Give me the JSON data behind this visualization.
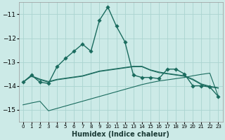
{
  "xlabel": "Humidex (Indice chaleur)",
  "ylabel": "",
  "xlim": [
    -0.5,
    23.5
  ],
  "ylim": [
    -15.5,
    -10.5
  ],
  "yticks": [
    -15,
    -14,
    -13,
    -12,
    -11
  ],
  "xticks": [
    0,
    1,
    2,
    3,
    4,
    5,
    6,
    7,
    8,
    9,
    10,
    11,
    12,
    13,
    14,
    15,
    16,
    17,
    18,
    19,
    20,
    21,
    22,
    23
  ],
  "background_color": "#cceae7",
  "grid_color": "#aad4d0",
  "line_color": "#1a6b5e",
  "figsize": [
    3.2,
    2.0
  ],
  "dpi": 100,
  "lines": [
    {
      "x": [
        0,
        1,
        2,
        3,
        4,
        5,
        6,
        7,
        8,
        9,
        10,
        11,
        12,
        13,
        14,
        15,
        16,
        17,
        18,
        19,
        20,
        21,
        22,
        23
      ],
      "y": [
        -13.85,
        -13.6,
        -13.75,
        -13.85,
        -13.75,
        -13.7,
        -13.65,
        -13.6,
        -13.5,
        -13.4,
        -13.35,
        -13.3,
        -13.25,
        -13.2,
        -13.2,
        -13.35,
        -13.45,
        -13.5,
        -13.55,
        -13.6,
        -13.75,
        -13.95,
        -14.05,
        -14.1
      ],
      "has_markers": false,
      "lw": 0.8
    },
    {
      "x": [
        0,
        1,
        2,
        3,
        4,
        5,
        6,
        7,
        8,
        9,
        10,
        11,
        12,
        13,
        14,
        15,
        16,
        17,
        18,
        19,
        20,
        21,
        22,
        23
      ],
      "y": [
        -14.8,
        -14.72,
        -14.65,
        -15.05,
        -14.95,
        -14.85,
        -14.75,
        -14.65,
        -14.55,
        -14.45,
        -14.35,
        -14.25,
        -14.15,
        -14.05,
        -13.95,
        -13.87,
        -13.8,
        -13.75,
        -13.7,
        -13.65,
        -13.58,
        -13.52,
        -13.47,
        -14.45
      ],
      "has_markers": false,
      "lw": 0.8
    },
    {
      "x": [
        0,
        1,
        2,
        3,
        4,
        5,
        6,
        7,
        8,
        9,
        10,
        11,
        12,
        13,
        14,
        15,
        16,
        17,
        18,
        19,
        20,
        21,
        22,
        23
      ],
      "y": [
        -13.85,
        -13.58,
        -13.72,
        -13.82,
        -13.73,
        -13.68,
        -13.63,
        -13.58,
        -13.48,
        -13.38,
        -13.33,
        -13.28,
        -13.23,
        -13.18,
        -13.18,
        -13.33,
        -13.42,
        -13.48,
        -13.53,
        -13.58,
        -13.72,
        -13.92,
        -14.02,
        -14.08
      ],
      "has_markers": false,
      "lw": 0.8
    },
    {
      "x": [
        0,
        1,
        2,
        3,
        4,
        5,
        6,
        7,
        8,
        9,
        10,
        11,
        12,
        13,
        14,
        15,
        16,
        17,
        18,
        19,
        20,
        21,
        22,
        23
      ],
      "y": [
        -13.85,
        -13.55,
        -13.85,
        -13.9,
        -13.2,
        -12.85,
        -12.55,
        -12.25,
        -12.55,
        -11.25,
        -10.7,
        -11.5,
        -12.15,
        -13.55,
        -13.65,
        -13.65,
        -13.7,
        -13.3,
        -13.3,
        -13.5,
        -14.0,
        -14.0,
        -14.05,
        -14.45
      ],
      "has_markers": true,
      "lw": 1.0
    }
  ]
}
